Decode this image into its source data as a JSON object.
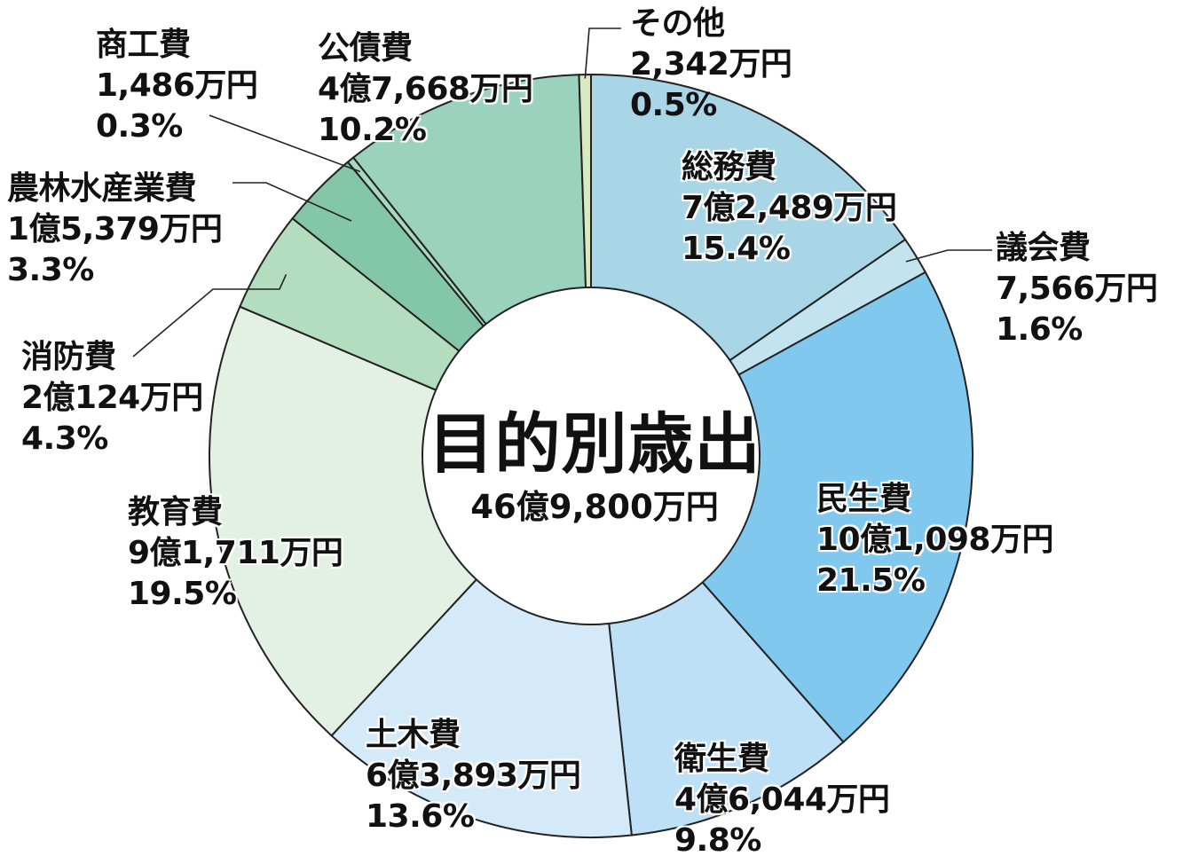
{
  "chart_data": {
    "type": "pie",
    "title": "目的別歳出",
    "total": "46億9,800万円",
    "slices": [
      {
        "label": "総務費",
        "amount": "7億2,489万円",
        "percent": "15.4%",
        "value": 15.4,
        "color": "#a8d6e6"
      },
      {
        "label": "議会費",
        "amount": "7,566万円",
        "percent": "1.6%",
        "value": 1.6,
        "color": "#c3e4ee"
      },
      {
        "label": "民生費",
        "amount": "10億1,098万円",
        "percent": "21.5%",
        "value": 21.5,
        "color": "#80c8ee"
      },
      {
        "label": "衛生費",
        "amount": "4億6,044万円",
        "percent": "9.8%",
        "value": 9.8,
        "color": "#bde0f6"
      },
      {
        "label": "土木費",
        "amount": "6億3,893万円",
        "percent": "13.6%",
        "value": 13.6,
        "color": "#d5eaf8"
      },
      {
        "label": "教育費",
        "amount": "9億1,711万円",
        "percent": "19.5%",
        "value": 19.5,
        "color": "#e3f1e5"
      },
      {
        "label": "消防費",
        "amount": "2億124万円",
        "percent": "4.3%",
        "value": 4.3,
        "color": "#b4dcbe"
      },
      {
        "label": "農林水産業費",
        "amount": "1億5,379万円",
        "percent": "3.3%",
        "value": 3.3,
        "color": "#84c6a8"
      },
      {
        "label": "商工費",
        "amount": "1,486万円",
        "percent": "0.3%",
        "value": 0.3,
        "color": "#a6d8c2"
      },
      {
        "label": "公債費",
        "amount": "4億7,668万円",
        "percent": "10.2%",
        "value": 10.2,
        "color": "#9ad2be"
      },
      {
        "label": "その他",
        "amount": "2,342万円",
        "percent": "0.5%",
        "value": 0.5,
        "color": "#d9e9c2"
      }
    ]
  }
}
